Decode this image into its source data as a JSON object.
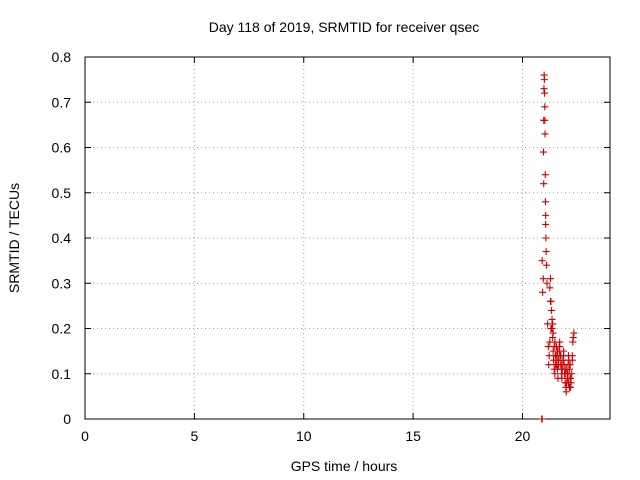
{
  "chart_data": {
    "type": "scatter",
    "title": "Day 118 of 2019, SRMTID for receiver qsec",
    "xlabel": "GPS time / hours",
    "ylabel": "SRMTID / TECUs",
    "xlim": [
      0,
      24
    ],
    "ylim": [
      0,
      0.8
    ],
    "xticks": [
      0,
      5,
      10,
      15,
      20
    ],
    "yticks": [
      0,
      0.1,
      0.2,
      0.3,
      0.4,
      0.5,
      0.6,
      0.7,
      0.8
    ],
    "grid": true,
    "legend": "none",
    "marker": "plus",
    "color": "#cc0000",
    "series": [
      {
        "x": [
          20.9,
          20.92,
          20.95,
          20.97,
          20.96,
          20.97,
          20.98,
          20.99,
          21.0,
          21.01,
          21.02,
          21.02,
          21.03,
          21.04,
          21.05,
          21.06,
          21.06,
          21.07,
          21.08,
          21.1,
          21.12,
          21.15,
          21.18,
          21.2,
          21.22,
          21.25,
          21.28,
          21.3,
          21.33,
          21.35,
          21.38,
          21.4,
          21.42,
          21.45,
          21.48,
          21.5,
          21.52,
          21.55,
          21.58,
          21.6,
          21.62,
          21.65,
          21.68,
          21.7,
          21.72,
          21.75,
          21.78,
          21.8,
          21.82,
          21.85,
          21.88,
          21.9,
          21.92,
          21.95,
          21.98,
          22.0,
          22.02,
          22.05,
          22.08,
          22.1,
          22.12,
          22.15,
          22.18,
          22.2,
          22.22,
          22.25,
          22.28,
          22.3,
          22.32,
          22.35,
          21.25,
          21.3,
          21.35,
          21.4,
          21.45,
          21.5,
          21.55,
          21.6,
          21.65,
          21.7,
          21.75,
          21.8,
          21.85,
          21.9,
          21.95,
          22.0,
          22.05,
          22.1,
          22.15,
          22.2,
          21.28,
          21.38,
          21.48,
          21.58,
          21.68,
          21.78,
          21.88,
          21.98,
          22.08,
          22.18,
          22.28,
          20.88,
          20.9
        ],
        "y": [
          0.35,
          0.28,
          0.31,
          0.52,
          0.59,
          0.66,
          0.73,
          0.76,
          0.75,
          0.72,
          0.69,
          0.66,
          0.63,
          0.54,
          0.48,
          0.45,
          0.43,
          0.4,
          0.37,
          0.34,
          0.3,
          0.21,
          0.16,
          0.12,
          0.14,
          0.29,
          0.31,
          0.26,
          0.24,
          0.2,
          0.18,
          0.15,
          0.13,
          0.11,
          0.1,
          0.12,
          0.14,
          0.16,
          0.13,
          0.11,
          0.09,
          0.12,
          0.15,
          0.17,
          0.14,
          0.12,
          0.1,
          0.09,
          0.11,
          0.13,
          0.15,
          0.12,
          0.1,
          0.08,
          0.07,
          0.06,
          0.08,
          0.1,
          0.12,
          0.14,
          0.13,
          0.11,
          0.09,
          0.07,
          0.08,
          0.1,
          0.13,
          0.17,
          0.18,
          0.19,
          0.17,
          0.2,
          0.22,
          0.19,
          0.16,
          0.14,
          0.12,
          0.15,
          0.13,
          0.16,
          0.14,
          0.11,
          0.13,
          0.12,
          0.1,
          0.11,
          0.09,
          0.08,
          0.07,
          0.09,
          0.26,
          0.21,
          0.17,
          0.14,
          0.16,
          0.12,
          0.14,
          0.11,
          0.1,
          0.12,
          0.14,
          0.0,
          0.0
        ]
      }
    ]
  }
}
